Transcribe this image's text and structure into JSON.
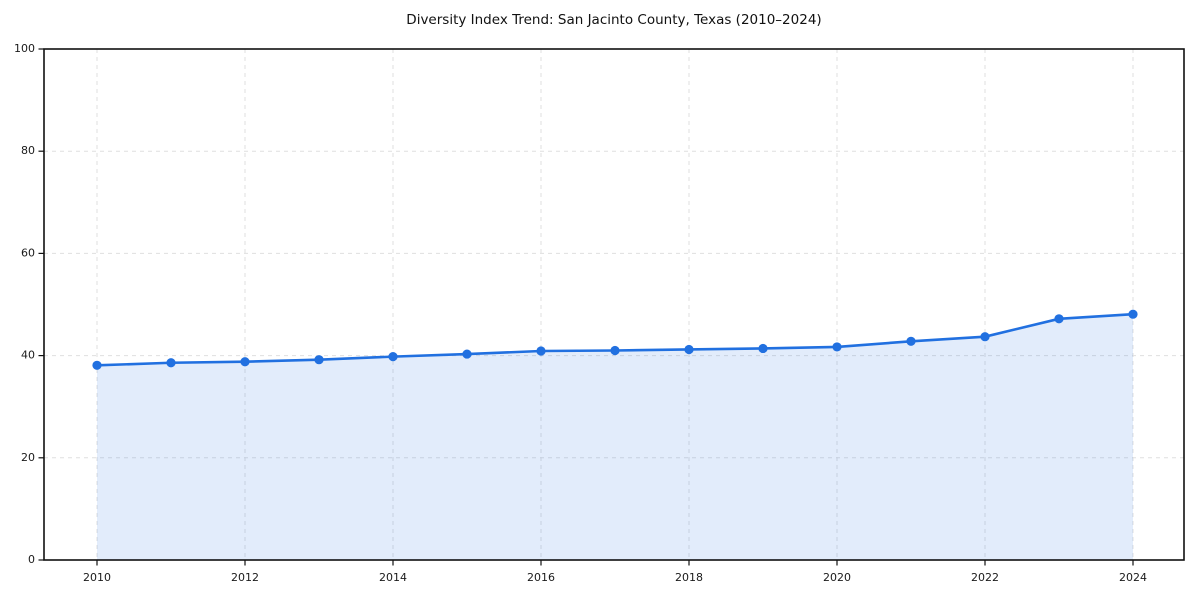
{
  "figure": {
    "background": "#ffffff"
  },
  "chart_data": {
    "type": "area",
    "title": "Diversity Index Trend: San Jacinto County, Texas (2010–2024)",
    "x": [
      2010,
      2011,
      2012,
      2013,
      2014,
      2015,
      2016,
      2017,
      2018,
      2019,
      2020,
      2021,
      2022,
      2023,
      2024
    ],
    "values": [
      38.1,
      38.6,
      38.8,
      39.2,
      39.8,
      40.3,
      40.9,
      41.0,
      41.2,
      41.4,
      41.7,
      42.8,
      43.7,
      47.2,
      48.1
    ],
    "xlabel": "",
    "ylabel": "",
    "ylim": [
      0,
      100
    ],
    "yticks": [
      0,
      20,
      40,
      60,
      80,
      100
    ],
    "ytick_labels": [
      "0",
      "20",
      "40",
      "60",
      "80",
      "100"
    ],
    "xticks": [
      2010,
      2012,
      2014,
      2016,
      2018,
      2020,
      2022,
      2024
    ],
    "xtick_labels": [
      "2010",
      "2012",
      "2014",
      "2016",
      "2018",
      "2020",
      "2022",
      "2024"
    ],
    "grid": {
      "visible": true,
      "style": "dashed",
      "color": "#dfdfdf"
    },
    "legend": "none",
    "marker": "circle",
    "colors": {
      "line": "#2170e0",
      "marker": "#2170e0",
      "fill": "#2170e0",
      "fill_opacity": 0.13,
      "spine": "#111111",
      "tick": "#111111",
      "tick_label": "#1a1a1a",
      "title": "#111111"
    }
  }
}
